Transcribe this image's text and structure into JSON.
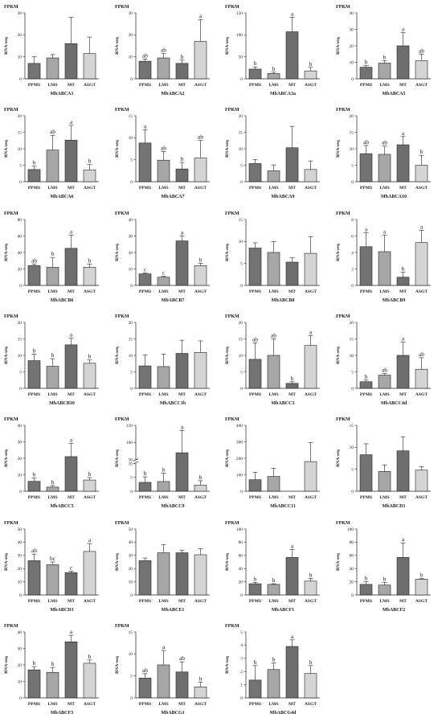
{
  "figure": {
    "unit_label": "FPKM",
    "y_axis_label": "RNA-seq",
    "categories": [
      "PPMS",
      "LMS",
      "MT",
      "ASGT"
    ],
    "bar_colors": [
      "#737373",
      "#a6a6a6",
      "#6e6e6e",
      "#d4d4d4"
    ]
  },
  "chart_data": [
    {
      "type": "bar",
      "title": "MbABCA1",
      "categories": [
        "PPMS",
        "LMS",
        "MT",
        "ASGT"
      ],
      "values": [
        7,
        9.5,
        16,
        11.5
      ],
      "errors": [
        3,
        1.5,
        12,
        7.5
      ],
      "letters": [
        "",
        "",
        "",
        ""
      ],
      "ylim": [
        0,
        30
      ],
      "yticks": [
        0,
        10,
        20,
        30
      ]
    },
    {
      "type": "bar",
      "title": "MbABCA2",
      "categories": [
        "PPMS",
        "LMS",
        "MT",
        "ASGT"
      ],
      "values": [
        8,
        9.5,
        7,
        17
      ],
      "errors": [
        1,
        2,
        1.5,
        10
      ],
      "letters": [
        "ab",
        "ab",
        "b",
        "a"
      ],
      "ylim": [
        0,
        30
      ],
      "yticks": [
        0,
        10,
        20,
        30
      ]
    },
    {
      "type": "bar",
      "title": "MbABCA3a",
      "categories": [
        "PPMS",
        "LMS",
        "MT",
        "ASGT"
      ],
      "values": [
        22,
        12,
        107,
        18
      ],
      "errors": [
        5,
        3,
        33,
        8
      ],
      "letters": [
        "b",
        "b",
        "a",
        "b"
      ],
      "ylim": [
        0,
        150
      ],
      "yticks": [
        0,
        50,
        100,
        150
      ]
    },
    {
      "type": "bar",
      "title": "MbABCA5",
      "categories": [
        "PPMS",
        "LMS",
        "MT",
        "ASGT"
      ],
      "values": [
        7,
        9.5,
        20,
        11
      ],
      "errors": [
        1,
        1.5,
        8,
        4
      ],
      "letters": [
        "b",
        "b",
        "a",
        "ab"
      ],
      "ylim": [
        0,
        40
      ],
      "yticks": [
        0,
        10,
        20,
        30,
        40
      ]
    },
    {
      "type": "bar",
      "title": "MbABCA6",
      "categories": [
        "PPMS",
        "LMS",
        "MT",
        "ASGT"
      ],
      "values": [
        3.7,
        9.6,
        12.6,
        3.6
      ],
      "errors": [
        1,
        4.5,
        4.5,
        1.6
      ],
      "letters": [
        "b",
        "ab",
        "a",
        "b"
      ],
      "ylim": [
        0,
        20
      ],
      "yticks": [
        0,
        5,
        10,
        15,
        20
      ]
    },
    {
      "type": "bar",
      "title": "MbABCA7",
      "categories": [
        "PPMS",
        "LMS",
        "MT",
        "ASGT"
      ],
      "values": [
        8.8,
        4.9,
        2.9,
        5.4
      ],
      "errors": [
        3,
        2,
        1.5,
        4
      ],
      "letters": [
        "a",
        "ab",
        "b",
        "ab"
      ],
      "ylim": [
        0,
        15
      ],
      "yticks": [
        0,
        5,
        10,
        15
      ]
    },
    {
      "type": "bar",
      "title": "MbABCA9",
      "categories": [
        "PPMS",
        "LMS",
        "MT",
        "ASGT"
      ],
      "values": [
        5.5,
        3.3,
        10.3,
        3.7
      ],
      "errors": [
        1.2,
        1.8,
        6.5,
        2.6
      ],
      "letters": [
        "",
        "",
        "",
        ""
      ],
      "ylim": [
        0,
        20
      ],
      "yticks": [
        0,
        5,
        10,
        15,
        20
      ]
    },
    {
      "type": "bar",
      "title": "MbABCA10",
      "categories": [
        "PPMS",
        "LMS",
        "MT",
        "ASGT"
      ],
      "values": [
        8.5,
        8.3,
        11.2,
        5
      ],
      "errors": [
        2.5,
        2.5,
        2.5,
        3
      ],
      "letters": [
        "ab",
        "ab",
        "a",
        "b"
      ],
      "ylim": [
        0,
        20
      ],
      "yticks": [
        0,
        5,
        10,
        15,
        20
      ]
    },
    {
      "type": "bar",
      "title": "MbABCB6",
      "categories": [
        "PPMS",
        "LMS",
        "MT",
        "ASGT"
      ],
      "values": [
        24,
        22,
        45,
        22
      ],
      "errors": [
        2,
        12,
        16,
        4
      ],
      "letters": [
        "ab",
        "b",
        "a",
        "b"
      ],
      "ylim": [
        0,
        80
      ],
      "yticks": [
        0,
        20,
        40,
        60,
        80
      ]
    },
    {
      "type": "bar",
      "title": "MbABCB7",
      "categories": [
        "PPMS",
        "LMS",
        "MT",
        "ASGT"
      ],
      "values": [
        7,
        5,
        27,
        12
      ],
      "errors": [
        0.5,
        0.5,
        3,
        1.5
      ],
      "letters": [
        "c",
        "c",
        "a",
        "b"
      ],
      "ylim": [
        0,
        40
      ],
      "yticks": [
        0,
        10,
        20,
        30,
        40
      ]
    },
    {
      "type": "bar",
      "title": "MbABCB8",
      "categories": [
        "PPMS",
        "LMS",
        "MT",
        "ASGT"
      ],
      "values": [
        8.5,
        7.5,
        5.3,
        7.3
      ],
      "errors": [
        1.2,
        2.5,
        1,
        3.8
      ],
      "letters": [
        "",
        "",
        "",
        ""
      ],
      "ylim": [
        0,
        15
      ],
      "yticks": [
        0,
        5,
        10,
        15
      ]
    },
    {
      "type": "bar",
      "title": "MbABCB9",
      "categories": [
        "PPMS",
        "LMS",
        "MT",
        "ASGT"
      ],
      "values": [
        4.7,
        4.1,
        1,
        5.2
      ],
      "errors": [
        1.7,
        2,
        0.6,
        1.5
      ],
      "letters": [
        "a",
        "a",
        "b",
        "a"
      ],
      "ylim": [
        0,
        8
      ],
      "yticks": [
        0,
        2,
        4,
        6,
        8
      ]
    },
    {
      "type": "bar",
      "title": "MbABCB10",
      "categories": [
        "PPMS",
        "LMS",
        "MT",
        "ASGT"
      ],
      "values": [
        8.4,
        6.7,
        13.2,
        7.6
      ],
      "errors": [
        2,
        2.3,
        2,
        1
      ],
      "letters": [
        "b",
        "b",
        "a",
        "b"
      ],
      "ylim": [
        0,
        20
      ],
      "yticks": [
        0,
        5,
        10,
        15,
        20
      ]
    },
    {
      "type": "bar",
      "title": "MbABCC1b",
      "categories": [
        "PPMS",
        "LMS",
        "MT",
        "ASGT"
      ],
      "values": [
        6.8,
        6.6,
        10.6,
        10.9
      ],
      "errors": [
        3.3,
        3.8,
        4,
        3.5
      ],
      "letters": [
        "",
        "",
        "",
        ""
      ],
      "ylim": [
        0,
        20
      ],
      "yticks": [
        0,
        5,
        10,
        15,
        20
      ]
    },
    {
      "type": "bar",
      "title": "MbABCC3",
      "categories": [
        "PPMS",
        "LMS",
        "MT",
        "ASGT"
      ],
      "values": [
        8.8,
        10,
        1.5,
        13
      ],
      "errors": [
        5,
        5,
        0.5,
        3
      ],
      "letters": [
        "ab",
        "ab",
        "b",
        "a"
      ],
      "ylim": [
        0,
        20
      ],
      "yticks": [
        0,
        5,
        10,
        15,
        20
      ]
    },
    {
      "type": "bar",
      "title": "MbABCC4d",
      "categories": [
        "PPMS",
        "LMS",
        "MT",
        "ASGT"
      ],
      "values": [
        2,
        4,
        10,
        5.8
      ],
      "errors": [
        0.5,
        0.5,
        4,
        3.5
      ],
      "letters": [
        "b",
        "ab",
        "a",
        "ab"
      ],
      "ylim": [
        0,
        20
      ],
      "yticks": [
        0,
        5,
        10,
        15,
        20
      ]
    },
    {
      "type": "bar",
      "title": "MbABCC5",
      "categories": [
        "PPMS",
        "LMS",
        "MT",
        "ASGT"
      ],
      "values": [
        6,
        2.5,
        21,
        6.8
      ],
      "errors": [
        2,
        1,
        8,
        1.5
      ],
      "letters": [
        "b",
        "b",
        "a",
        "b"
      ],
      "ylim": [
        0,
        40
      ],
      "yticks": [
        0,
        10,
        20,
        30,
        40
      ]
    },
    {
      "type": "bar",
      "title": "MbABCC9",
      "categories": [
        "PPMS",
        "LMS",
        "MT",
        "ASGT"
      ],
      "values": [
        3.2,
        3.5,
        70,
        2.2
      ],
      "errors": [
        2,
        3,
        65,
        1.6
      ],
      "letters": [
        "b",
        "b",
        "a",
        "b"
      ],
      "ylim": [
        0,
        150
      ],
      "yticks": [
        0,
        5,
        10,
        50,
        100,
        150
      ],
      "axis_break": [
        10,
        50
      ]
    },
    {
      "type": "bar",
      "title": "MbABCC11",
      "categories": [
        "PPMS",
        "LMS",
        "MT",
        "ASGT"
      ],
      "values": [
        70,
        90,
        0,
        180
      ],
      "errors": [
        45,
        50,
        0,
        115
      ],
      "letters": [
        "",
        "",
        "",
        ""
      ],
      "ylim": [
        0,
        400
      ],
      "yticks": [
        0,
        100,
        200,
        300,
        400
      ]
    },
    {
      "type": "bar",
      "title": "MbABCD1",
      "categories": [
        "PPMS",
        "LMS",
        "MT",
        "ASGT"
      ],
      "values": [
        8.3,
        4.5,
        9.2,
        4.8
      ],
      "errors": [
        2.5,
        1.5,
        3.2,
        0.8
      ],
      "letters": [
        "",
        "",
        "",
        ""
      ],
      "ylim": [
        0,
        15
      ],
      "yticks": [
        0,
        5,
        10,
        15
      ]
    },
    {
      "type": "bar",
      "title": "MbABCD3",
      "categories": [
        "PPMS",
        "LMS",
        "MT",
        "ASGT"
      ],
      "values": [
        26,
        23,
        17,
        33
      ],
      "errors": [
        5,
        2,
        1,
        6
      ],
      "letters": [
        "ab",
        "bc",
        "c",
        "a"
      ],
      "ylim": [
        0,
        50
      ],
      "yticks": [
        0,
        10,
        20,
        30,
        40,
        50
      ]
    },
    {
      "type": "bar",
      "title": "MbABCE1",
      "categories": [
        "PPMS",
        "LMS",
        "MT",
        "ASGT"
      ],
      "values": [
        26,
        32,
        32,
        30.5
      ],
      "errors": [
        2,
        6,
        2,
        4.5
      ],
      "letters": [
        "",
        "",
        "",
        ""
      ],
      "ylim": [
        0,
        50
      ],
      "yticks": [
        0,
        10,
        20,
        30,
        40,
        50
      ]
    },
    {
      "type": "bar",
      "title": "MbABCF1",
      "categories": [
        "PPMS",
        "LMS",
        "MT",
        "ASGT"
      ],
      "values": [
        17,
        16,
        57,
        21
      ],
      "errors": [
        2,
        1,
        12,
        4
      ],
      "letters": [
        "b",
        "b",
        "a",
        "b"
      ],
      "ylim": [
        0,
        100
      ],
      "yticks": [
        0,
        20,
        40,
        60,
        80,
        100
      ]
    },
    {
      "type": "bar",
      "title": "MbABCF2",
      "categories": [
        "PPMS",
        "LMS",
        "MT",
        "ASGT"
      ],
      "values": [
        16,
        15,
        57,
        24
      ],
      "errors": [
        4,
        4,
        22,
        1
      ],
      "letters": [
        "b",
        "b",
        "a",
        "b"
      ],
      "ylim": [
        0,
        100
      ],
      "yticks": [
        0,
        20,
        40,
        60,
        80,
        100
      ]
    },
    {
      "type": "bar",
      "title": "MbABCF3",
      "categories": [
        "PPMS",
        "LMS",
        "MT",
        "ASGT"
      ],
      "values": [
        17,
        15.5,
        34,
        21
      ],
      "errors": [
        2,
        3,
        4,
        2
      ],
      "letters": [
        "b",
        "b",
        "a",
        "b"
      ],
      "ylim": [
        0,
        40
      ],
      "yticks": [
        0,
        10,
        20,
        30,
        40
      ]
    },
    {
      "type": "bar",
      "title": "MbABCG1",
      "categories": [
        "PPMS",
        "LMS",
        "MT",
        "ASGT"
      ],
      "values": [
        4.5,
        7.5,
        5.9,
        2.5
      ],
      "errors": [
        1,
        3.3,
        2.3,
        1.1
      ],
      "letters": [
        "ab",
        "a",
        "ab",
        "b"
      ],
      "ylim": [
        0,
        15
      ],
      "yticks": [
        0,
        5,
        10,
        15
      ]
    },
    {
      "type": "bar",
      "title": "MbABCG4d",
      "categories": [
        "PPMS",
        "LMS",
        "MT",
        "ASGT"
      ],
      "values": [
        1.35,
        2.15,
        3.9,
        1.85
      ],
      "errors": [
        1.1,
        0.5,
        0.5,
        0.6
      ],
      "letters": [
        "b",
        "b",
        "a",
        "b"
      ],
      "ylim": [
        0,
        5
      ],
      "yticks": [
        0,
        1,
        2,
        3,
        4,
        5
      ]
    }
  ]
}
